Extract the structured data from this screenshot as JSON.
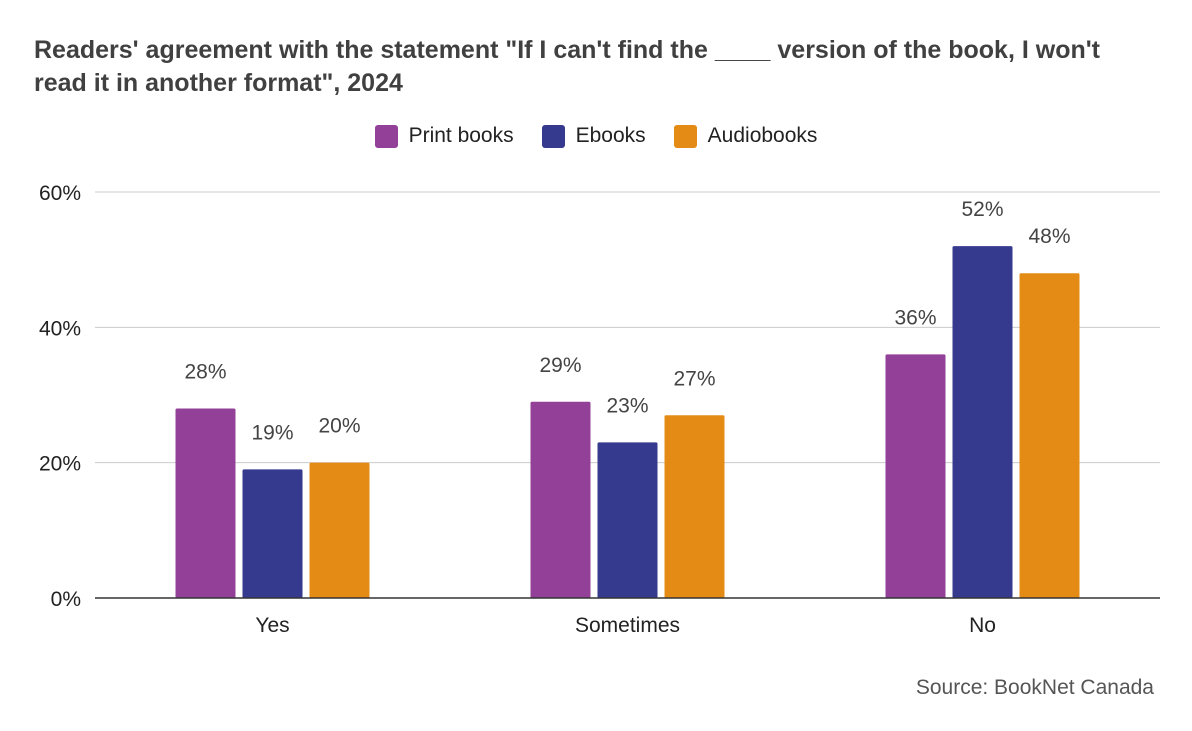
{
  "chart_data": {
    "type": "bar",
    "title": "Readers' agreement with the statement \"If I can't find the ____ version of the book, I won't read it in another format\", 2024",
    "categories": [
      "Yes",
      "Sometimes",
      "No"
    ],
    "series": [
      {
        "name": "Print books",
        "color": "#934198",
        "values": [
          28,
          29,
          36
        ],
        "labels": [
          "28%",
          "29%",
          "36%"
        ]
      },
      {
        "name": "Ebooks",
        "color": "#363a8e",
        "values": [
          19,
          23,
          52
        ],
        "labels": [
          "19%",
          "23%",
          "52%"
        ]
      },
      {
        "name": "Audiobooks",
        "color": "#e48b16",
        "values": [
          20,
          27,
          48
        ],
        "labels": [
          "20%",
          "27%",
          "48%"
        ]
      }
    ],
    "ylim": [
      0,
      60
    ],
    "yticks": [
      0,
      20,
      40,
      60
    ],
    "ytick_labels": [
      "0%",
      "20%",
      "40%",
      "60%"
    ],
    "grid": true,
    "legend_position": "top-center",
    "xlabel": "",
    "ylabel": ""
  },
  "source": "Source: BookNet Canada"
}
